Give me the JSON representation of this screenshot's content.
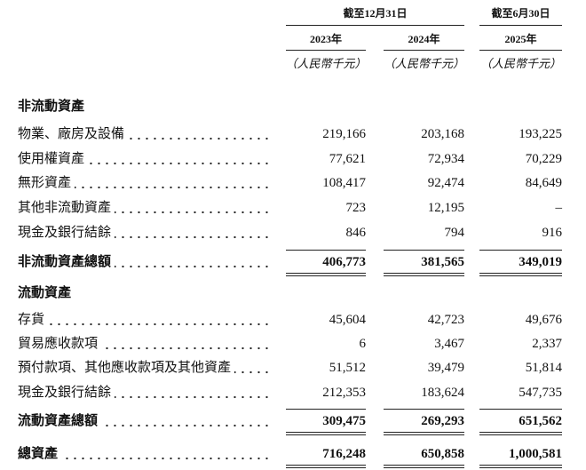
{
  "header": {
    "period_groups": [
      "截至12月31日",
      "截至6月30日"
    ],
    "years": [
      "2023年",
      "2024年",
      "2025年"
    ],
    "units": [
      "（人民幣千元）",
      "（人民幣千元）",
      "（人民幣千元）"
    ]
  },
  "sections": [
    {
      "title": "非流動資產",
      "rows": [
        {
          "label": "物業、廠房及設備",
          "values": [
            "219,166",
            "203,168",
            "193,225"
          ]
        },
        {
          "label": "使用權資產",
          "values": [
            "77,621",
            "72,934",
            "70,229"
          ]
        },
        {
          "label": "無形資產",
          "values": [
            "108,417",
            "92,474",
            "84,649"
          ]
        },
        {
          "label": "其他非流動資產",
          "values": [
            "723",
            "12,195",
            "–"
          ]
        },
        {
          "label": "現金及銀行結餘",
          "values": [
            "846",
            "794",
            "916"
          ]
        }
      ],
      "total": {
        "label": "非流動資產總額",
        "values": [
          "406,773",
          "381,565",
          "349,019"
        ]
      }
    },
    {
      "title": "流動資產",
      "rows": [
        {
          "label": "存貨",
          "values": [
            "45,604",
            "42,723",
            "49,676"
          ]
        },
        {
          "label": "貿易應收款項",
          "values": [
            "6",
            "3,467",
            "2,337"
          ]
        },
        {
          "label": "預付款項、其他應收款項及其他資產",
          "values": [
            "51,512",
            "39,479",
            "51,814"
          ]
        },
        {
          "label": "現金及銀行結餘",
          "values": [
            "212,353",
            "183,624",
            "547,735"
          ]
        }
      ],
      "total": {
        "label": "流動資產總額",
        "values": [
          "309,475",
          "269,293",
          "651,562"
        ]
      }
    }
  ],
  "grand_total": {
    "label": "總資產",
    "values": [
      "716,248",
      "650,858",
      "1,000,581"
    ]
  }
}
